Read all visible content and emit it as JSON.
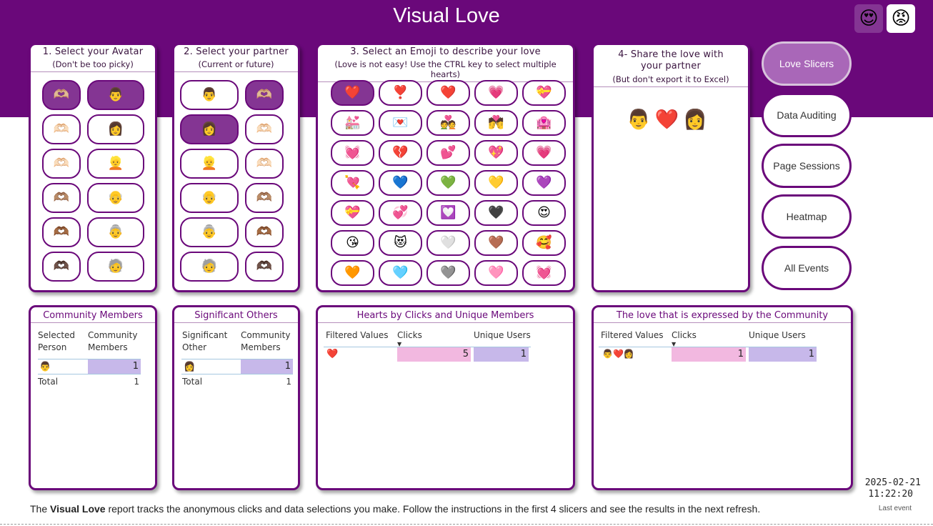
{
  "title": "Visual Love",
  "top_icons": [
    "😍",
    "😡"
  ],
  "slicer1": {
    "title": "1. Select your Avatar",
    "subtitle": "(Don't be too picky)",
    "hands": [
      "🫶🏼",
      "🫶🏻",
      "🫶🏻",
      "🫶🏽",
      "🫶🏾",
      "🫶🏿"
    ],
    "faces": [
      "👨",
      "👩",
      "👱",
      "👴",
      "👵",
      "🧓"
    ]
  },
  "slicer2": {
    "title": "2. Select your partner",
    "subtitle": "(Current or future)",
    "faces": [
      "👨",
      "👩",
      "👱",
      "👴",
      "👵",
      "🧓"
    ],
    "hands": [
      "🫶🏼",
      "🫶🏻",
      "🫶🏻",
      "🫶🏽",
      "🫶🏾",
      "🫶🏿"
    ]
  },
  "slicer3": {
    "title": "3. Select an Emoji to describe your love",
    "subtitle": "(Love is not easy! Use the CTRL key to select multiple hearts)",
    "emojis": [
      "❤️",
      "❣️",
      "❤️",
      "💗",
      "💝",
      "💒",
      "💌",
      "💑",
      "💏",
      "🏩",
      "💓",
      "💔",
      "💕",
      "💖",
      "💗",
      "💘",
      "💙",
      "💚",
      "💛",
      "💜",
      "💝",
      "💞",
      "💟",
      "🖤",
      "😍",
      "😘",
      "😻",
      "🤍",
      "🤎",
      "🥰",
      "🧡",
      "🩵",
      "🩶",
      "🩷",
      "💓"
    ]
  },
  "share": {
    "title": "4- Share the love with your partner",
    "subtitle": "(But don't export it to Excel)",
    "result": [
      "👨",
      "❤️",
      "👩"
    ]
  },
  "nav": [
    "Love Slicers",
    "Data Auditing",
    "Page Sessions",
    "Heatmap",
    "All Events"
  ],
  "community": {
    "title": "Community Members",
    "col1": "Selected Person",
    "col2": "Community Members",
    "row_emoji": "👨",
    "row_value": "1",
    "total_label": "Total",
    "total_value": "1"
  },
  "significant": {
    "title": "Significant Others",
    "col1": "Significant Other",
    "col2": "Community Members",
    "row_emoji": "👩",
    "row_value": "1",
    "total_label": "Total",
    "total_value": "1"
  },
  "hearts": {
    "title": "Hearts by Clicks and Unique Members",
    "col1": "Filtered Values",
    "col2": "Clicks",
    "col3": "Unique Users",
    "row_emoji": "❤️",
    "clicks": "5",
    "users": "1"
  },
  "expressed": {
    "title": "The love that is expressed by the Community",
    "col1": "Filtered Values",
    "col2": "Clicks",
    "col3": "Unique Users",
    "row_emoji": "👨❤️👩",
    "clicks": "1",
    "users": "1"
  },
  "footer": {
    "prefix": "The ",
    "bold": "Visual Love",
    "suffix": " report tracks the anonymous clicks and data selections you make. Follow the instructions in the first 4 slicers and see the results in the next refresh."
  },
  "last_event": {
    "date": "2025-02-21",
    "time": "11:22:20",
    "label": "Last event"
  },
  "colors": {
    "brand": "#6a087a",
    "selected": "#843593",
    "nav_active": "#a967b8",
    "bar_pink": "#f2b8e0",
    "bar_lavender": "#c7b8ea"
  }
}
